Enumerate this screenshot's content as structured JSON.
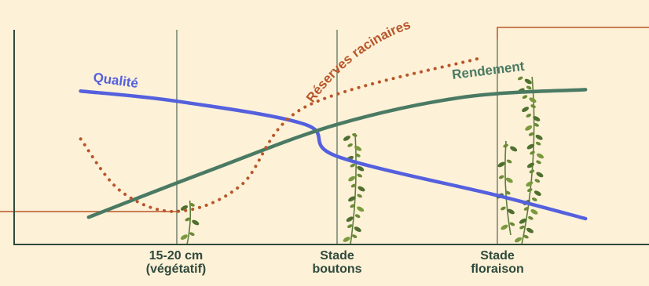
{
  "chart_data": {
    "type": "line",
    "title": "",
    "xlabel": "",
    "ylabel": "",
    "stages": [
      {
        "line1": "15-20 cm",
        "line2": "(végétatif)"
      },
      {
        "line1": "Stade",
        "line2": "boutons"
      },
      {
        "line1": "Stade",
        "line2": "floraison"
      }
    ],
    "x": [
      0,
      1,
      2,
      3
    ],
    "series": [
      {
        "name": "Qualité",
        "color": "#5460de",
        "values": [
          9.5,
          8.8,
          7.2,
          5.0,
          2.3,
          0.7
        ],
        "x": [
          -0.6,
          0,
          0.8,
          1,
          2,
          2.55
        ]
      },
      {
        "name": "Rendement",
        "color": "#4a7a63",
        "values": [
          0.8,
          4.0,
          7.2,
          9.1,
          9.6
        ],
        "x": [
          -0.55,
          0.2,
          1,
          1.8,
          2.55
        ]
      },
      {
        "name": "Réserves racinaires",
        "color": "#b8562a",
        "values": [
          6.2,
          2.6,
          1.2,
          3.0,
          8.4,
          11.8
        ],
        "x": [
          -0.6,
          -0.35,
          0,
          0.4,
          0.8,
          1.9
        ]
      }
    ],
    "colors": {
      "background": "#fdf1d7",
      "axis": "#2f4a3c",
      "gridline": "#2f4a3c",
      "threshold": "#b8562a"
    },
    "icons": [
      "alfalfa-plant-icon"
    ]
  }
}
